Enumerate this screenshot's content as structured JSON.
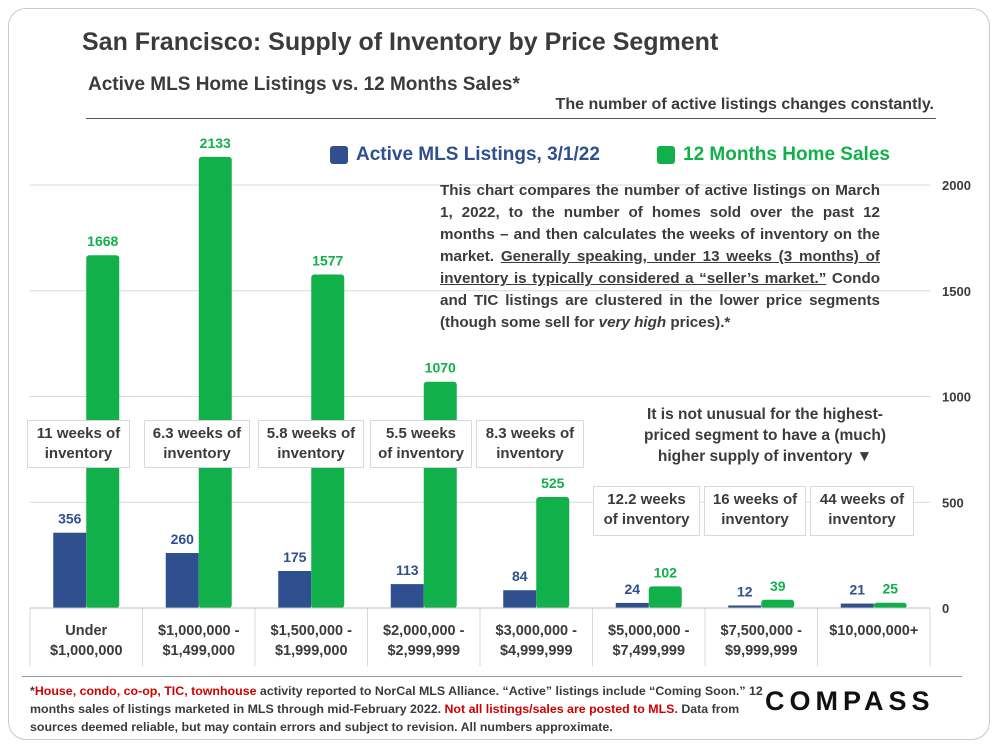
{
  "header": {
    "title": "San Francisco: Supply of Inventory by Price Segment",
    "subtitle": "Active MLS Home Listings vs. 12 Months Sales*",
    "top_note": "The number of active listings changes constantly."
  },
  "legend": {
    "listings": "Active MLS Listings, 3/1/22",
    "sales": "12 Months Home Sales"
  },
  "colors": {
    "listings": "#2f4f8f",
    "sales": "#12b04a"
  },
  "note": {
    "p1": "This chart compares the number of active listings on March 1, 2022, to the number of homes sold over the past 12 months – and then calculates the weeks of inventory on the market. ",
    "p_underline": "Generally speaking, under 13 weeks (3 months) of inventory is typically considered a “seller’s market.”",
    "p2": " Condo and TIC listings are clustered in the lower price segments (though some sell for ",
    "p_italic": "very high",
    "p3": " prices).*"
  },
  "note2": "It is not unusual for the highest-priced segment to have a (much) higher supply of inventory ▼",
  "weeks": [
    [
      "11 weeks of",
      "inventory"
    ],
    [
      "6.3 weeks of",
      "inventory"
    ],
    [
      "5.8 weeks of",
      "inventory"
    ],
    [
      "5.5 weeks",
      "of inventory"
    ],
    [
      "8.3 weeks of",
      "inventory"
    ],
    [
      "12.2 weeks",
      "of inventory"
    ],
    [
      "16 weeks of",
      "inventory"
    ],
    [
      "44 weeks of",
      "inventory"
    ]
  ],
  "footer": {
    "star": "*",
    "red1": "House, condo, co-op, TIC, townhouse",
    "t1": " activity reported to NorCal MLS Alliance. “Active” listings include “Coming Soon.” 12 months sales of listings marketed in MLS through mid-February 2022. ",
    "red2": "Not all listings/sales are posted to MLS",
    "t2": ". Data from sources deemed reliable, but may contain errors and subject to revision.  All numbers approximate."
  },
  "logo": "COMPASS",
  "chart_data": {
    "type": "bar",
    "categories": [
      [
        "Under",
        "$1,000,000"
      ],
      [
        "$1,000,000 -",
        "$1,499,000"
      ],
      [
        "$1,500,000 -",
        "$1,999,000"
      ],
      [
        "$2,000,000 -",
        "$2,999,999"
      ],
      [
        "$3,000,000 -",
        "$4,999,999"
      ],
      [
        "$5,000,000 -",
        "$7,499,999"
      ],
      [
        "$7,500,000 -",
        "$9,999,999"
      ],
      [
        "$10,000,000+"
      ]
    ],
    "series": [
      {
        "name": "Active MLS Listings, 3/1/22",
        "values": [
          356,
          260,
          175,
          113,
          84,
          24,
          12,
          21
        ]
      },
      {
        "name": "12 Months Home Sales",
        "values": [
          1668,
          2133,
          1577,
          1070,
          525,
          102,
          39,
          25
        ]
      }
    ],
    "y_ticks": [
      0,
      500,
      1000,
      1500,
      2000
    ],
    "ylim": [
      0,
      2100
    ],
    "grid": true,
    "y_axis_side": "right",
    "legend_position": "top"
  }
}
